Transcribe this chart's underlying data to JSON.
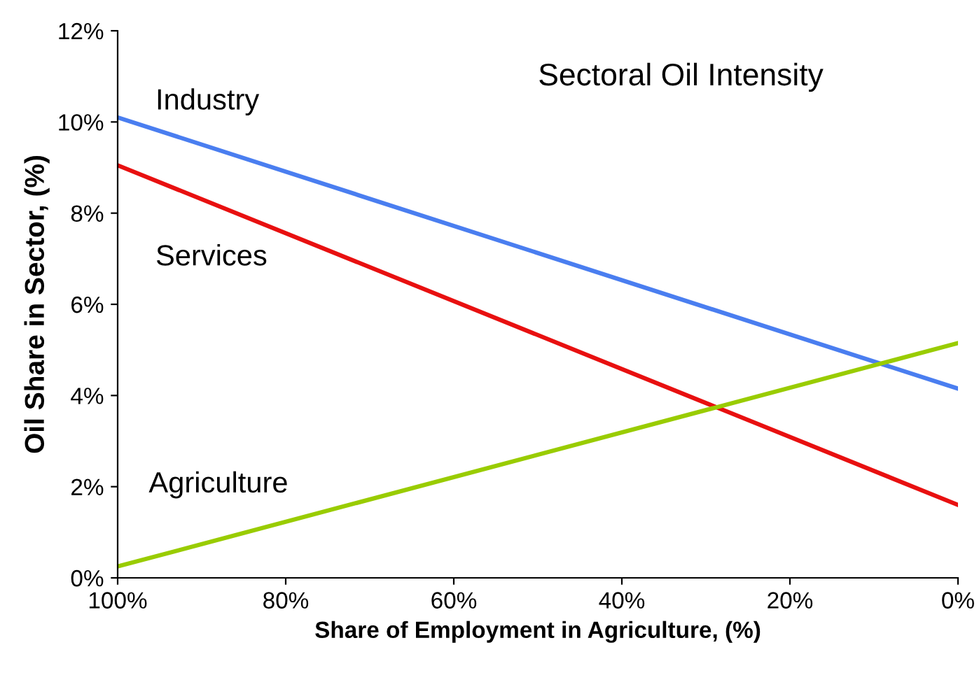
{
  "chart_data": {
    "type": "line",
    "title": "Sectoral Oil Intensity",
    "xlabel": "Share of Employment in Agriculture, (%)",
    "ylabel": "Oil Share in Sector, (%)",
    "x": [
      100,
      0
    ],
    "series": [
      {
        "name": "Industry",
        "color": "#4a7ef0",
        "values": [
          10.1,
          4.15
        ]
      },
      {
        "name": "Services",
        "color": "#e81010",
        "values": [
          9.05,
          1.6
        ]
      },
      {
        "name": "Agriculture",
        "color": "#99cc00",
        "values": [
          0.25,
          5.15
        ]
      }
    ],
    "xlim": [
      100,
      0
    ],
    "xticks": [
      {
        "value": 100,
        "label": "100%"
      },
      {
        "value": 80,
        "label": "80%"
      },
      {
        "value": 60,
        "label": "60%"
      },
      {
        "value": 40,
        "label": "40%"
      },
      {
        "value": 20,
        "label": "20%"
      },
      {
        "value": 0,
        "label": "0%"
      }
    ],
    "ylim": [
      0,
      12
    ],
    "yticks": [
      {
        "value": 0,
        "label": "0%"
      },
      {
        "value": 2,
        "label": "2%"
      },
      {
        "value": 4,
        "label": "4%"
      },
      {
        "value": 6,
        "label": "6%"
      },
      {
        "value": 8,
        "label": "8%"
      },
      {
        "value": 10,
        "label": "10%"
      },
      {
        "value": 12,
        "label": "12%"
      }
    ],
    "grid": false,
    "legend": false,
    "marker": "none",
    "line_style": "solid"
  }
}
